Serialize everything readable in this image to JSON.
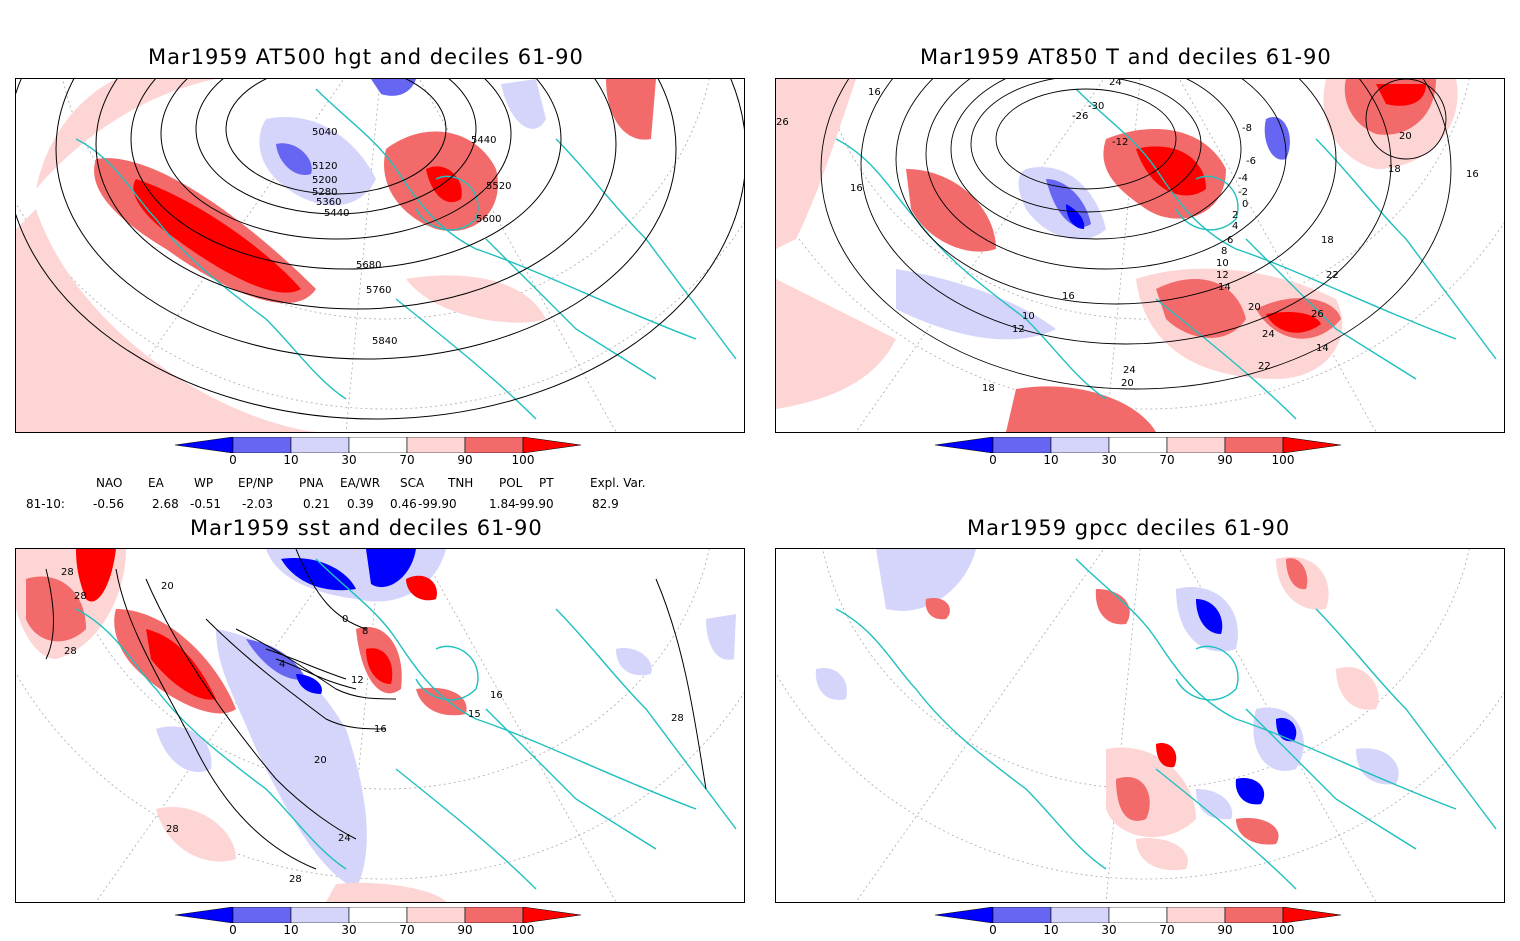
{
  "panels": [
    {
      "title": "Mar1959 AT500 hgt and deciles 61-90",
      "contour_labels": [
        "5040",
        "5120",
        "5200",
        "5280",
        "5360",
        "5440",
        "5440",
        "5520",
        "5600",
        "5680",
        "5760",
        "5840"
      ]
    },
    {
      "title": "Mar1959 AT850 T and deciles 61-90",
      "contour_labels": [
        "24",
        "-30",
        "-26",
        "-12",
        "-8",
        "-6",
        "-4",
        "-2",
        "0",
        "2",
        "4",
        "6",
        "8",
        "10",
        "12",
        "14",
        "16",
        "18",
        "18",
        "20",
        "20",
        "22",
        "22",
        "24",
        "24",
        "26",
        "26",
        "16",
        "16",
        "18",
        "16",
        "10",
        "12",
        "14",
        "20"
      ]
    },
    {
      "title": "Mar1959 sst and deciles 61-90",
      "contour_labels": [
        "28",
        "28",
        "28",
        "20",
        "4",
        "8",
        "12",
        "16",
        "20",
        "24",
        "28",
        "28",
        "15",
        "16",
        "28",
        "0"
      ]
    },
    {
      "title": "Mar1959 gpcc deciles 61-90",
      "contour_labels": []
    }
  ],
  "colorbar": {
    "labels": [
      "0",
      "10",
      "30",
      "70",
      "90",
      "100"
    ],
    "colors": [
      "#0000ff",
      "#6666f2",
      "#d5d5fb",
      "#ffffff",
      "#fdd5d5",
      "#f36a6a",
      "#ff0000"
    ]
  },
  "indices": {
    "row_label": "81-10:",
    "headers": [
      "NAO",
      "EA",
      "WP",
      "EP/NP",
      "PNA",
      "EA/WR",
      "SCA",
      "TNH",
      "POL",
      "PT",
      "Expl. Var."
    ],
    "values": [
      "-0.56",
      "2.68",
      "-0.51",
      "-2.03",
      "0.21",
      "0.39",
      "0.46",
      "-99.90",
      "1.84",
      "-99.90",
      "82.9"
    ]
  },
  "map_colors": {
    "coast": "#20c0c0",
    "contour": "#000000",
    "grid": "#999999"
  }
}
